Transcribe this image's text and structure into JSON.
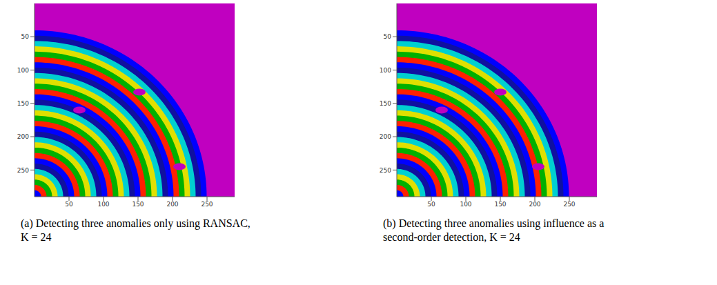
{
  "chart_data": [
    {
      "type": "image",
      "caption": "(a) Detecting three anomalies only using RANSAC, K = 24",
      "xlim": [
        0,
        290
      ],
      "ylim": [
        0,
        290
      ],
      "xticks": [
        50,
        100,
        150,
        200,
        250
      ],
      "yticks": [
        50,
        100,
        150,
        200,
        250
      ],
      "color": "#c000c0",
      "center": [
        0,
        290
      ],
      "ring_radii": [
        5,
        13,
        21,
        29,
        37,
        45,
        53,
        61,
        69,
        77,
        85,
        93,
        101,
        109,
        117,
        125,
        133,
        141,
        149,
        157,
        165,
        173,
        181,
        189,
        197,
        205,
        213,
        221,
        229,
        237,
        245
      ],
      "colors": [
        "#0000ff",
        "#ff2000",
        "#00b000",
        "#e0e000",
        "#00d0d0",
        "#1010a0",
        "#0000ff",
        "#ff2000",
        "#00b000",
        "#e0e000",
        "#00d0d0",
        "#1010a0",
        "#0000ff",
        "#ff2000",
        "#00b000",
        "#e0e000",
        "#00d0d0",
        "#1010a0",
        "#0000ff",
        "#ff2000",
        "#00b000",
        "#e0e000",
        "#00d0d0",
        "#1010a0",
        "#0000ff",
        "#ff2000",
        "#00b000",
        "#e0e000",
        "#00d0d0",
        "#1010a0",
        "#0000ff"
      ],
      "anomalies": [
        {
          "x": 65,
          "y": 160
        },
        {
          "x": 152,
          "y": 133
        },
        {
          "x": 210,
          "y": 245
        }
      ]
    },
    {
      "type": "image",
      "caption": "(b) Detecting three anomalies using influence as a second-order detection, K = 24",
      "xlim": [
        0,
        290
      ],
      "ylim": [
        0,
        290
      ],
      "xticks": [
        50,
        100,
        150,
        200,
        250
      ],
      "yticks": [
        50,
        100,
        150,
        200,
        250
      ],
      "color": "#c000c0",
      "center": [
        0,
        290
      ],
      "ring_radii": [
        5,
        13,
        21,
        29,
        37,
        45,
        53,
        61,
        69,
        77,
        85,
        93,
        101,
        109,
        117,
        125,
        133,
        141,
        149,
        157,
        165,
        173,
        181,
        189,
        197,
        205,
        213,
        221,
        229,
        237,
        245
      ],
      "colors": [
        "#0000ff",
        "#ff2000",
        "#00b000",
        "#e0e000",
        "#00d0d0",
        "#1010a0",
        "#0000ff",
        "#ff2000",
        "#00b000",
        "#e0e000",
        "#00d0d0",
        "#1010a0",
        "#0000ff",
        "#ff2000",
        "#00b000",
        "#e0e000",
        "#00d0d0",
        "#1010a0",
        "#0000ff",
        "#ff2000",
        "#00b000",
        "#e0e000",
        "#00d0d0",
        "#1010a0",
        "#0000ff",
        "#ff2000",
        "#00b000",
        "#e0e000",
        "#00d0d0",
        "#1010a0",
        "#0000ff"
      ],
      "anomalies": [
        {
          "x": 65,
          "y": 160
        },
        {
          "x": 150,
          "y": 133
        },
        {
          "x": 205,
          "y": 245
        }
      ]
    }
  ]
}
